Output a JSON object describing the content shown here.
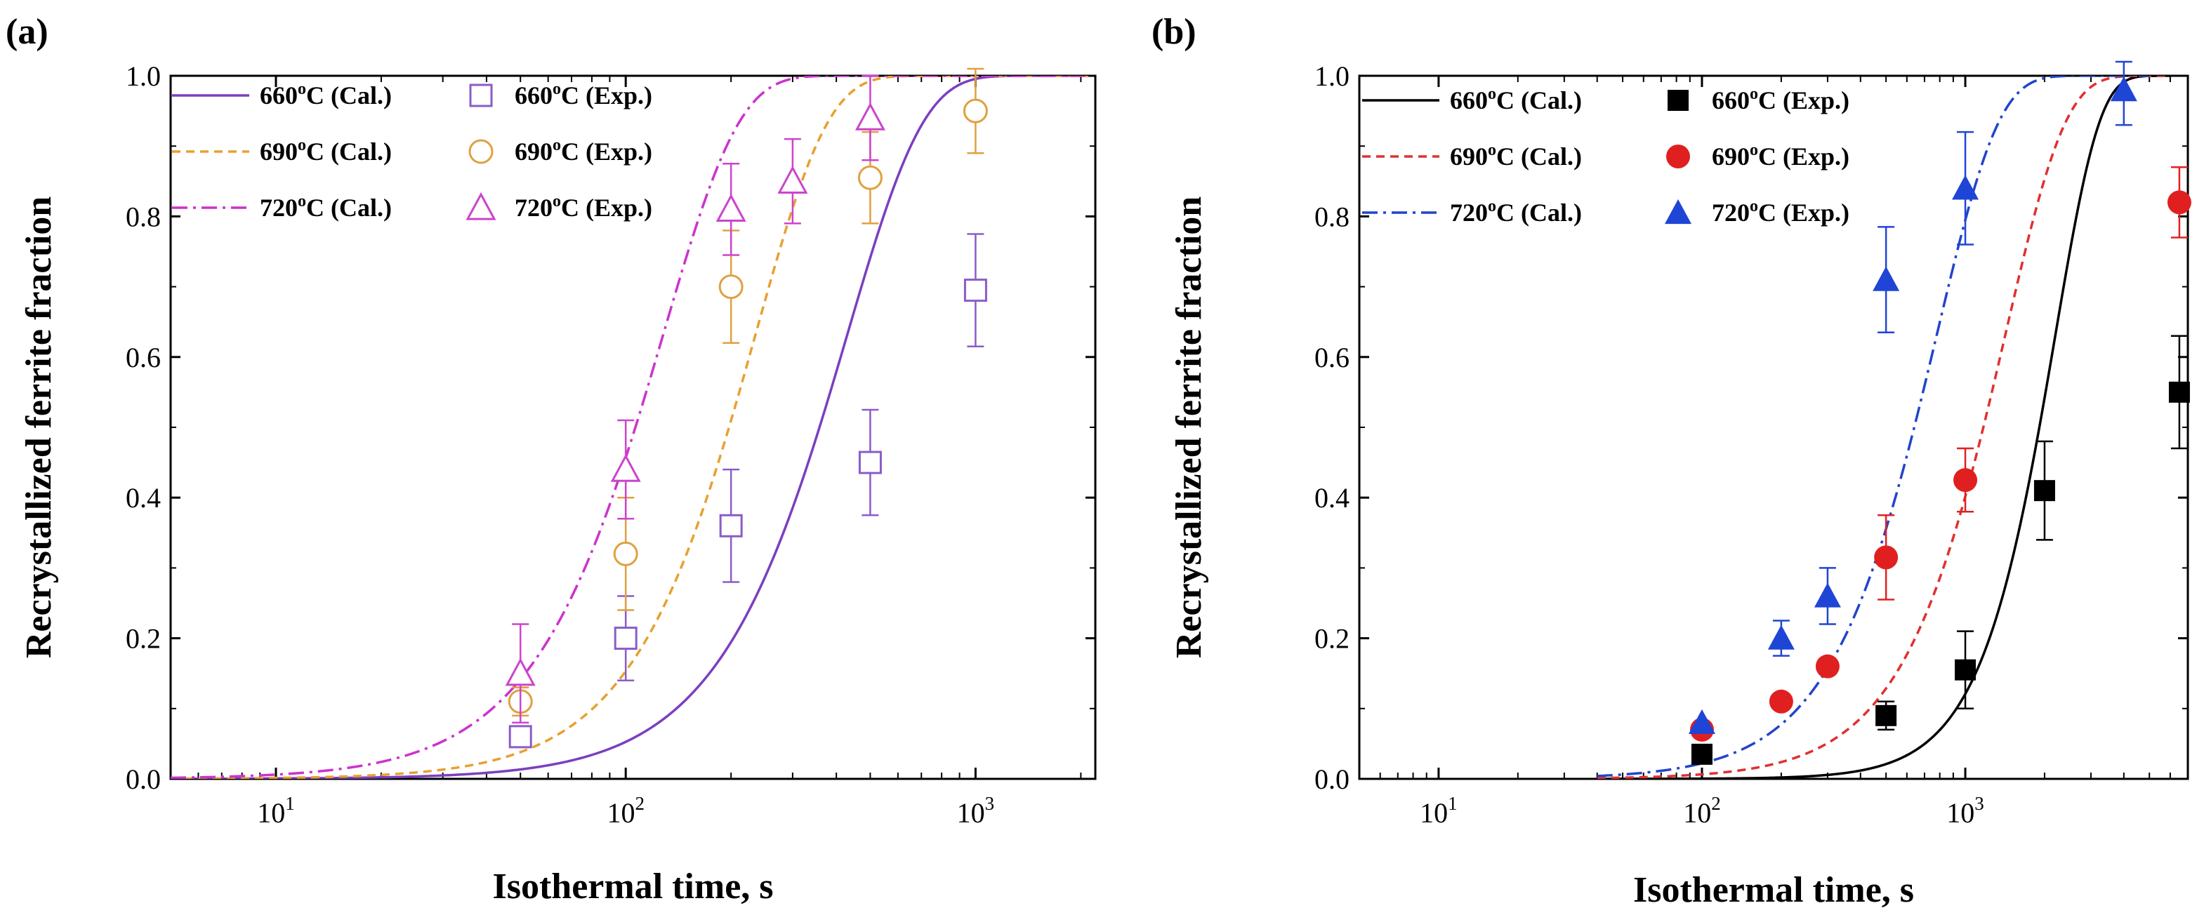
{
  "chart_data": [
    {
      "panel": "(a)",
      "type": "scatter",
      "xscale": "log",
      "xlim": [
        5,
        2200
      ],
      "ylim": [
        0.0,
        1.0
      ],
      "xlabel": "Isothermal time, s",
      "ylabel": "Recrystallized ferrite fraction",
      "xticks": [
        {
          "base": "10",
          "exp": "1",
          "value": 10
        },
        {
          "base": "10",
          "exp": "2",
          "value": 100
        },
        {
          "base": "10",
          "exp": "3",
          "value": 1000
        }
      ],
      "yticks": [
        "0.0",
        "0.2",
        "0.4",
        "0.6",
        "0.8",
        "1.0"
      ],
      "calculated": [
        {
          "temp": "660",
          "sup": "o",
          "suffix": "C (Cal.)",
          "color": "#7b3fbf",
          "dash": "",
          "tau": 430,
          "n": 2.0,
          "x_start": 5,
          "x_end": 2100
        },
        {
          "temp": "690",
          "sup": "o",
          "suffix": "C (Cal.)",
          "color": "#e8a030",
          "dash": "12,8",
          "tau": 235,
          "n": 2.1,
          "x_start": 5,
          "x_end": 2100
        },
        {
          "temp": "720",
          "sup": "o",
          "suffix": "C (Cal.)",
          "color": "#cc33cc",
          "dash": "22,8,4,8",
          "tau": 128,
          "n": 2.0,
          "x_start": 5,
          "x_end": 2100
        }
      ],
      "experimental": [
        {
          "temp": "660",
          "sup": "o",
          "suffix": "C (Exp.)",
          "color": "#8a5cc8",
          "marker": "square-open",
          "points": [
            {
              "x": 50,
              "y": 0.06,
              "err": 0.0
            },
            {
              "x": 100,
              "y": 0.2,
              "err": 0.06
            },
            {
              "x": 200,
              "y": 0.36,
              "err": 0.08
            },
            {
              "x": 500,
              "y": 0.45,
              "err": 0.075
            },
            {
              "x": 1000,
              "y": 0.695,
              "err": 0.08
            }
          ]
        },
        {
          "temp": "690",
          "sup": "o",
          "suffix": "C (Exp.)",
          "color": "#e0a040",
          "marker": "circle-open",
          "points": [
            {
              "x": 50,
              "y": 0.11,
              "err": 0.02
            },
            {
              "x": 100,
              "y": 0.32,
              "err": 0.08
            },
            {
              "x": 200,
              "y": 0.7,
              "err": 0.08
            },
            {
              "x": 500,
              "y": 0.855,
              "err": 0.065
            },
            {
              "x": 1000,
              "y": 0.95,
              "err": 0.06
            }
          ]
        },
        {
          "temp": "720",
          "sup": "o",
          "suffix": "C (Exp.)",
          "color": "#cc44cc",
          "marker": "triangle-open",
          "points": [
            {
              "x": 50,
              "y": 0.15,
              "err": 0.07
            },
            {
              "x": 100,
              "y": 0.44,
              "err": 0.07
            },
            {
              "x": 200,
              "y": 0.81,
              "err": 0.065
            },
            {
              "x": 300,
              "y": 0.85,
              "err": 0.06
            },
            {
              "x": 500,
              "y": 0.94,
              "err": 0.06
            }
          ]
        }
      ]
    },
    {
      "panel": "(b)",
      "type": "scatter",
      "xscale": "log",
      "xlim": [
        5,
        7000
      ],
      "ylim": [
        0.0,
        1.0
      ],
      "xlabel": "Isothermal time, s",
      "ylabel": "Recrystallized ferrite fraction",
      "xticks": [
        {
          "base": "10",
          "exp": "1",
          "value": 10
        },
        {
          "base": "10",
          "exp": "2",
          "value": 100
        },
        {
          "base": "10",
          "exp": "3",
          "value": 1000
        }
      ],
      "yticks": [
        "0.0",
        "0.2",
        "0.4",
        "0.6",
        "0.8",
        "1.0"
      ],
      "calculated": [
        {
          "temp": "660",
          "sup": "o",
          "suffix": "C (Cal.)",
          "color": "#000000",
          "dash": "",
          "tau": 2200,
          "n": 2.6,
          "x_start": 40,
          "x_end": 6000
        },
        {
          "temp": "690",
          "sup": "o",
          "suffix": "C (Cal.)",
          "color": "#e03030",
          "dash": "12,8",
          "tau": 1420,
          "n": 1.9,
          "x_start": 40,
          "x_end": 6000
        },
        {
          "temp": "720",
          "sup": "o",
          "suffix": "C (Cal.)",
          "color": "#2244cc",
          "dash": "22,8,4,8",
          "tau": 780,
          "n": 1.85,
          "x_start": 40,
          "x_end": 5000
        }
      ],
      "experimental": [
        {
          "temp": "660",
          "sup": "o",
          "suffix": "C (Exp.)",
          "color": "#000000",
          "marker": "square-filled",
          "points": [
            {
              "x": 100,
              "y": 0.035,
              "err": 0.0
            },
            {
              "x": 500,
              "y": 0.09,
              "err": 0.02
            },
            {
              "x": 1000,
              "y": 0.155,
              "err": 0.055
            },
            {
              "x": 2000,
              "y": 0.41,
              "err": 0.07
            },
            {
              "x": 6500,
              "y": 0.55,
              "err": 0.08
            }
          ]
        },
        {
          "temp": "690",
          "sup": "o",
          "suffix": "C (Exp.)",
          "color": "#e02020",
          "marker": "circle-filled",
          "points": [
            {
              "x": 100,
              "y": 0.07,
              "err": 0.0
            },
            {
              "x": 200,
              "y": 0.11,
              "err": 0.0
            },
            {
              "x": 300,
              "y": 0.16,
              "err": 0.0
            },
            {
              "x": 500,
              "y": 0.315,
              "err": 0.06
            },
            {
              "x": 1000,
              "y": 0.425,
              "err": 0.045
            },
            {
              "x": 6500,
              "y": 0.82,
              "err": 0.05
            }
          ]
        },
        {
          "temp": "720",
          "sup": "o",
          "suffix": "C (Exp.)",
          "color": "#1f45d6",
          "marker": "triangle-filled",
          "points": [
            {
              "x": 100,
              "y": 0.08,
              "err": 0.0
            },
            {
              "x": 200,
              "y": 0.2,
              "err": 0.025
            },
            {
              "x": 300,
              "y": 0.26,
              "err": 0.04
            },
            {
              "x": 500,
              "y": 0.71,
              "err": 0.075
            },
            {
              "x": 1000,
              "y": 0.84,
              "err": 0.08
            },
            {
              "x": 4000,
              "y": 0.98,
              "err": 0.05
            }
          ]
        }
      ]
    }
  ]
}
